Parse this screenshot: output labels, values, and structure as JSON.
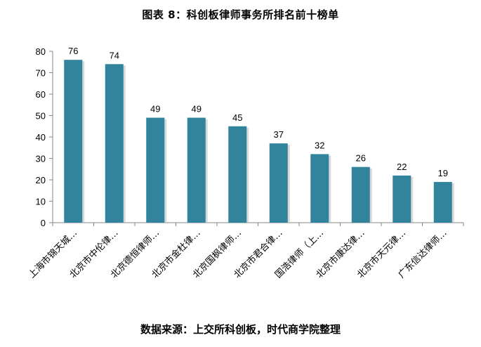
{
  "header": {
    "title": "图表 8：科创板律师事务所排名前十榜单"
  },
  "footer": {
    "source": "数据来源：上交所科创板，时代商学院整理"
  },
  "chart_data": {
    "type": "bar",
    "title": "图表 8：科创板律师事务所排名前十榜单",
    "xlabel": "",
    "ylabel": "",
    "ylim": [
      0,
      80
    ],
    "yticks": [
      0,
      10,
      20,
      30,
      40,
      50,
      60,
      70,
      80
    ],
    "grid": false,
    "legend": "none",
    "bar_color": "#31849B",
    "categories": [
      "上海市锦天城…",
      "北京市中伦律…",
      "北京德恒律师…",
      "北京市金杜律…",
      "北京国枫律师…",
      "北京市君合律…",
      "国浩律师（上…",
      "北京市康达律…",
      "北京市天元律…",
      "广东信达律师…"
    ],
    "values": [
      76,
      74,
      49,
      49,
      45,
      37,
      32,
      26,
      22,
      19
    ]
  }
}
